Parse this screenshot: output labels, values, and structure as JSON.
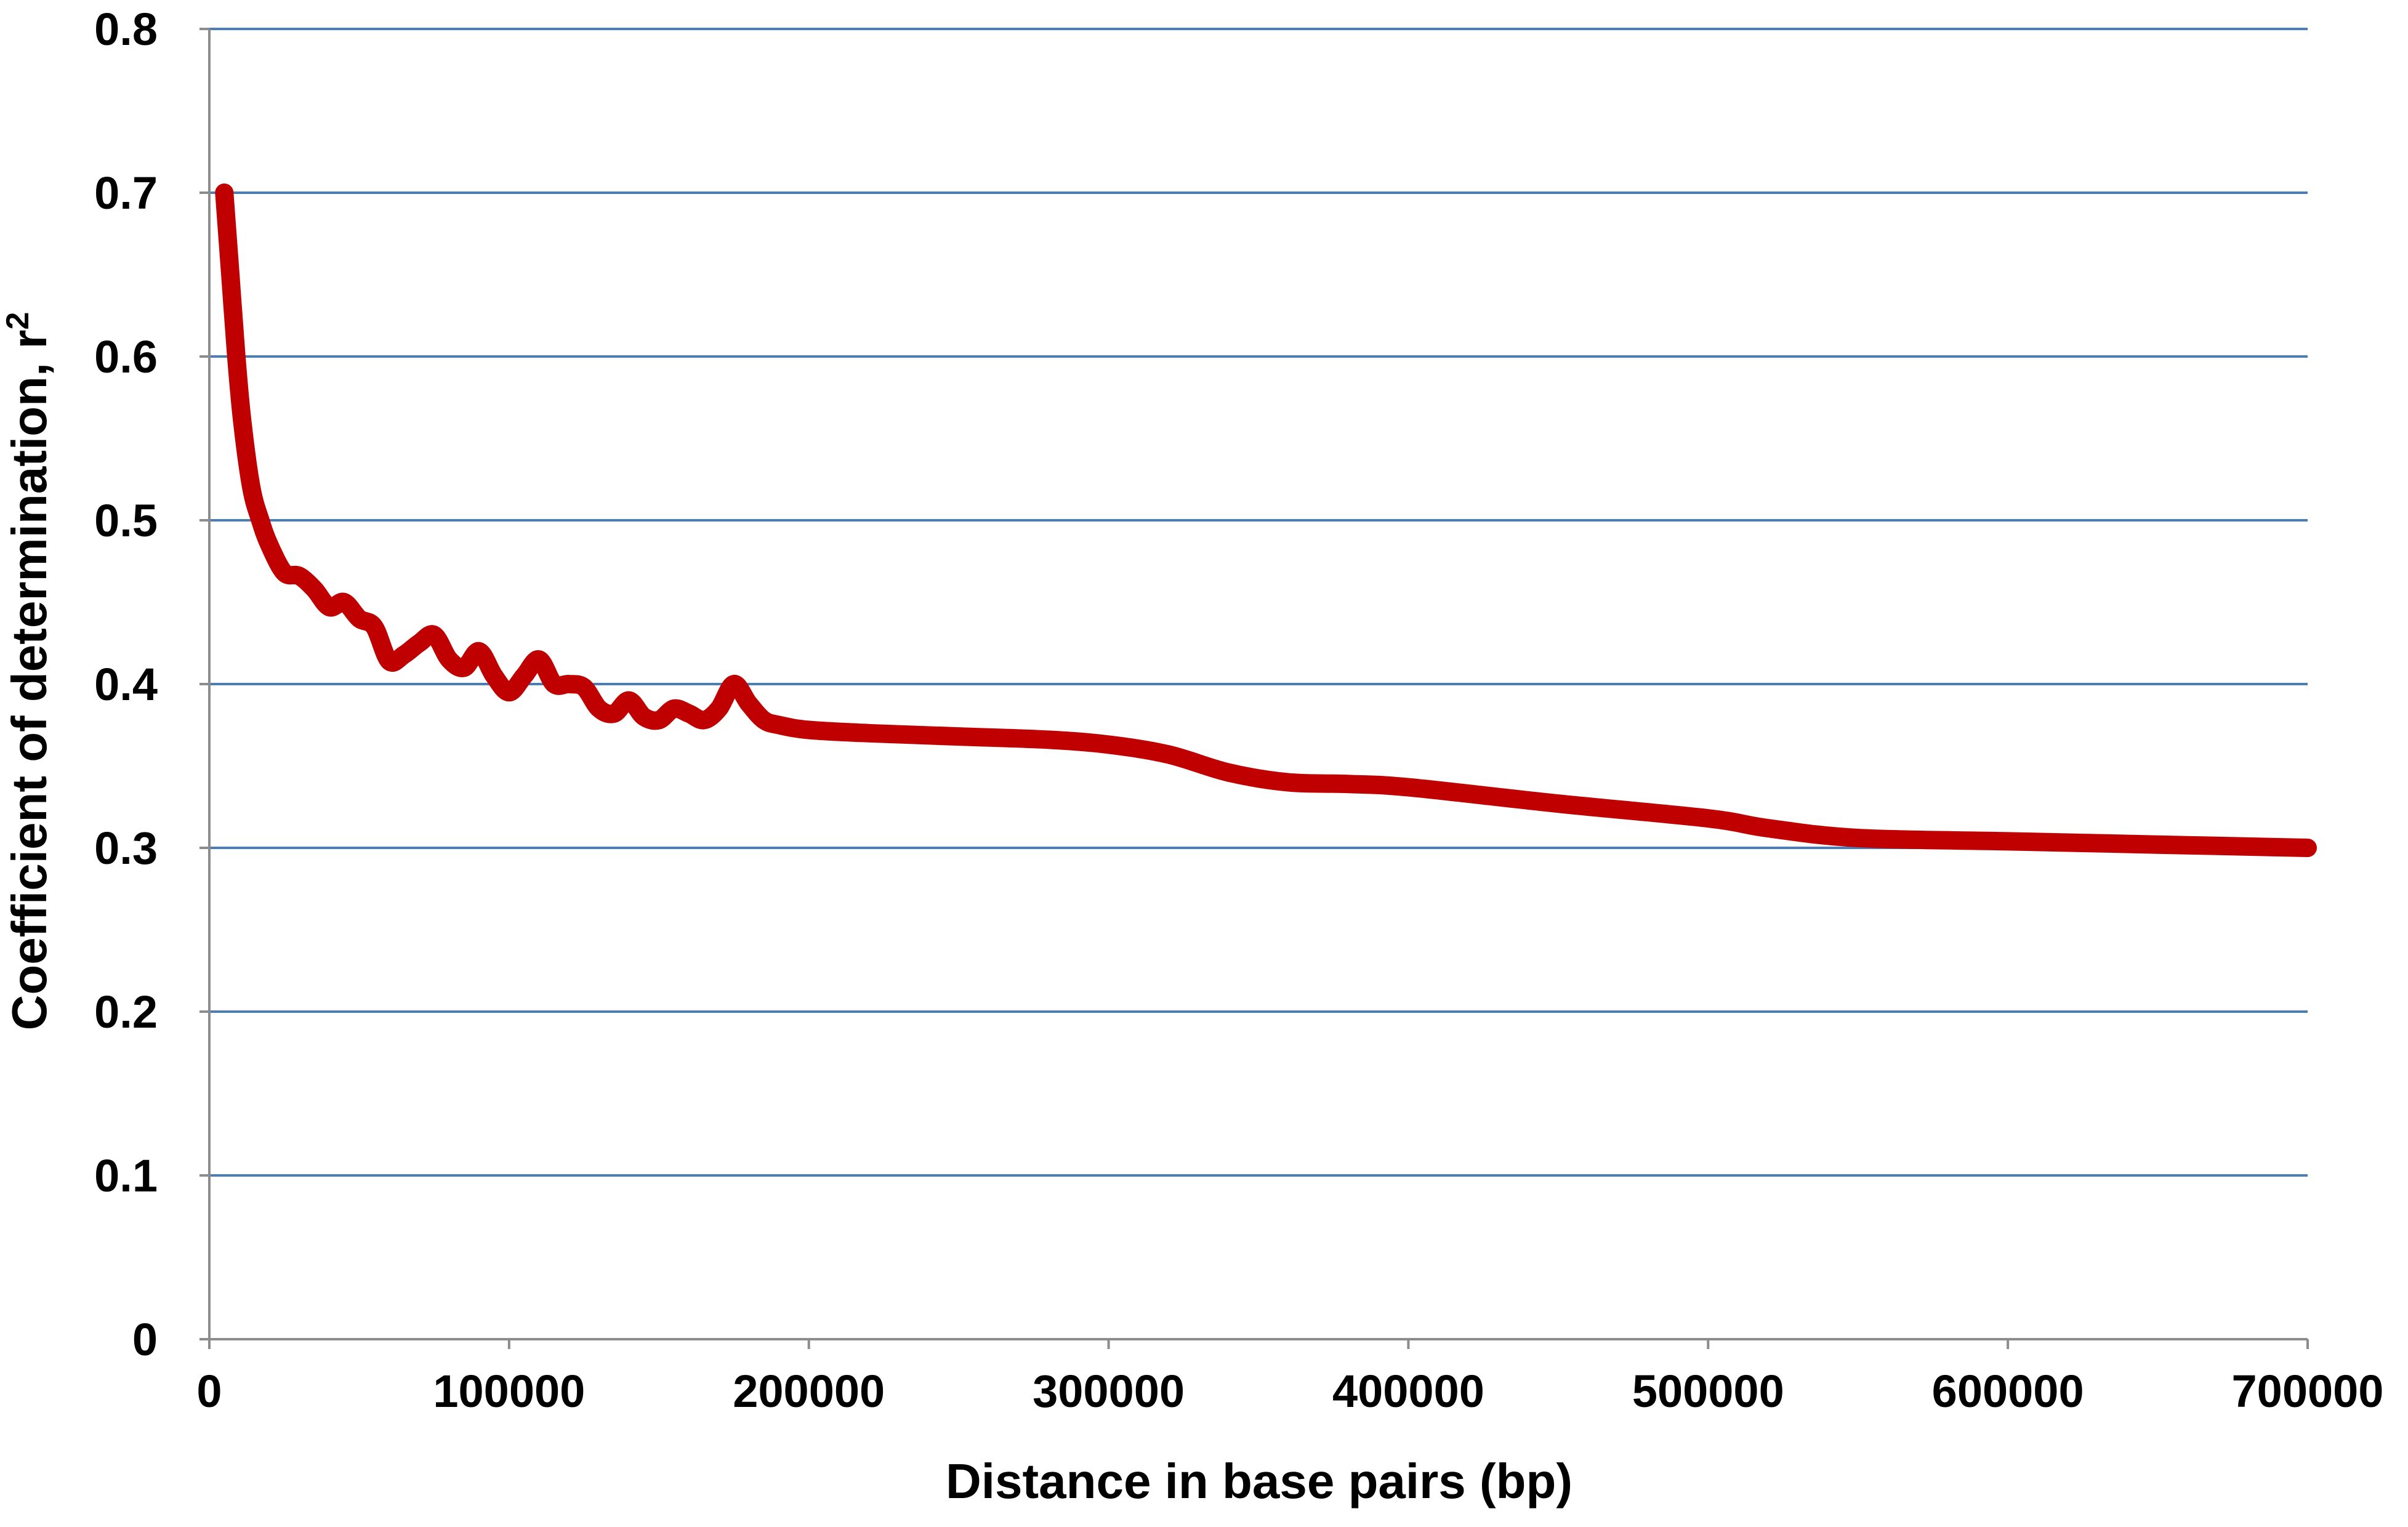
{
  "chart_data": {
    "type": "line",
    "xlabel": "Distance in base pairs (bp)",
    "ylabel_main": "Coefficient of determination, r",
    "ylabel_superscript": "2",
    "xlim": [
      0,
      700000
    ],
    "ylim": [
      0,
      0.8
    ],
    "x_ticks": [
      "0",
      "100000",
      "200000",
      "300000",
      "400000",
      "500000",
      "600000",
      "700000"
    ],
    "x_tick_values": [
      0,
      100000,
      200000,
      300000,
      400000,
      500000,
      600000,
      700000
    ],
    "y_ticks": [
      "0",
      "0.1",
      "0.2",
      "0.3",
      "0.4",
      "0.5",
      "0.6",
      "0.7",
      "0.8"
    ],
    "y_tick_values": [
      0,
      0.1,
      0.2,
      0.3,
      0.4,
      0.5,
      0.6,
      0.7,
      0.8
    ],
    "grid": "horizontal",
    "legend": "none",
    "colors": {
      "series": "#c00000",
      "grid": "#4a7ebb",
      "axis": "#8c8c8c"
    },
    "series": [
      {
        "x": [
          5000,
          7000,
          9000,
          11000,
          14000,
          17000,
          20000,
          25000,
          30000,
          35000,
          40000,
          45000,
          50000,
          55000,
          60000,
          65000,
          70000,
          75000,
          80000,
          85000,
          90000,
          95000,
          100000,
          105000,
          110000,
          115000,
          120000,
          125000,
          130000,
          135000,
          140000,
          145000,
          150000,
          155000,
          160000,
          165000,
          170000,
          175000,
          180000,
          185000,
          190000,
          200000,
          220000,
          250000,
          280000,
          300000,
          320000,
          340000,
          360000,
          380000,
          400000,
          450000,
          500000,
          520000,
          550000,
          600000,
          650000,
          700000
        ],
        "values": [
          0.7,
          0.65,
          0.6,
          0.56,
          0.52,
          0.5,
          0.485,
          0.468,
          0.466,
          0.458,
          0.447,
          0.45,
          0.44,
          0.435,
          0.414,
          0.418,
          0.425,
          0.43,
          0.415,
          0.41,
          0.42,
          0.405,
          0.395,
          0.405,
          0.415,
          0.4,
          0.4,
          0.398,
          0.385,
          0.382,
          0.39,
          0.38,
          0.378,
          0.385,
          0.382,
          0.378,
          0.385,
          0.4,
          0.388,
          0.378,
          0.375,
          0.372,
          0.37,
          0.368,
          0.366,
          0.363,
          0.357,
          0.346,
          0.34,
          0.339,
          0.337,
          0.327,
          0.318,
          0.312,
          0.306,
          0.304,
          0.302,
          0.3
        ]
      }
    ]
  }
}
